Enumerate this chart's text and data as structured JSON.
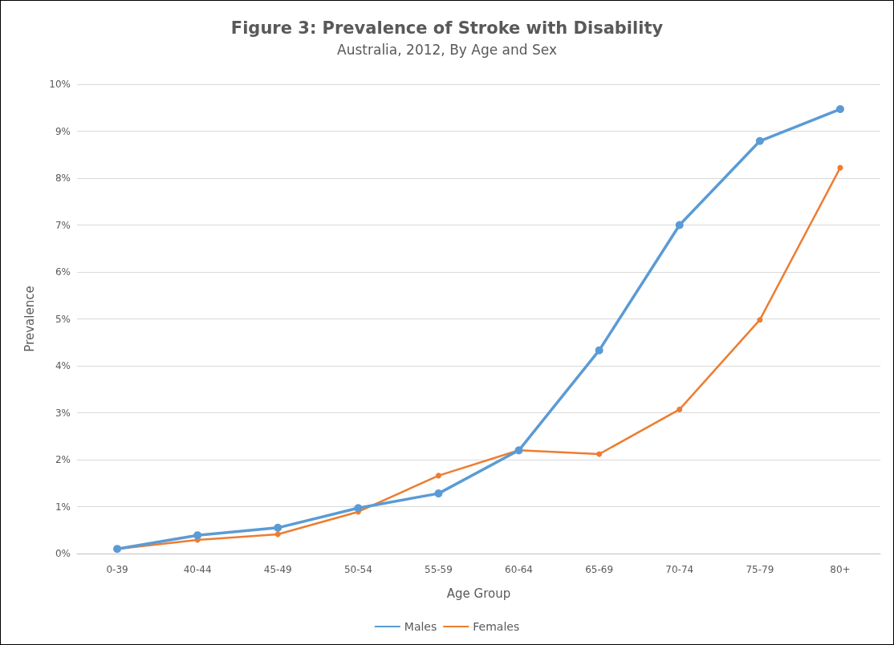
{
  "chart_data": {
    "type": "line",
    "title": "Figure 3: Prevalence of Stroke with Disability",
    "subtitle": "Australia, 2012, By Age and Sex",
    "xlabel": "Age Group",
    "ylabel": "Prevalence",
    "categories": [
      "0-39",
      "40-44",
      "45-49",
      "50-54",
      "55-59",
      "60-64",
      "65-69",
      "70-74",
      "75-79",
      "80+"
    ],
    "series": [
      {
        "name": "Males",
        "color": "#5b9bd5",
        "values": [
          0.1,
          0.39,
          0.55,
          0.97,
          1.28,
          2.2,
          4.33,
          7.0,
          8.79,
          9.47
        ]
      },
      {
        "name": "Females",
        "color": "#ed7d31",
        "values": [
          0.1,
          0.29,
          0.41,
          0.89,
          1.66,
          2.2,
          2.12,
          3.07,
          4.98,
          8.22
        ]
      }
    ],
    "ylim": [
      0,
      10
    ],
    "yticks": [
      {
        "value": 0,
        "label": "0%"
      },
      {
        "value": 1,
        "label": "1%"
      },
      {
        "value": 2,
        "label": "2%"
      },
      {
        "value": 3,
        "label": "3%"
      },
      {
        "value": 4,
        "label": "4%"
      },
      {
        "value": 5,
        "label": "5%"
      },
      {
        "value": 6,
        "label": "6%"
      },
      {
        "value": 7,
        "label": "7%"
      },
      {
        "value": 8,
        "label": "8%"
      },
      {
        "value": 9,
        "label": "9%"
      },
      {
        "value": 10,
        "label": "10%"
      }
    ],
    "grid": "y",
    "legend": "bottom",
    "marker": "circle",
    "line_style": "solid"
  }
}
